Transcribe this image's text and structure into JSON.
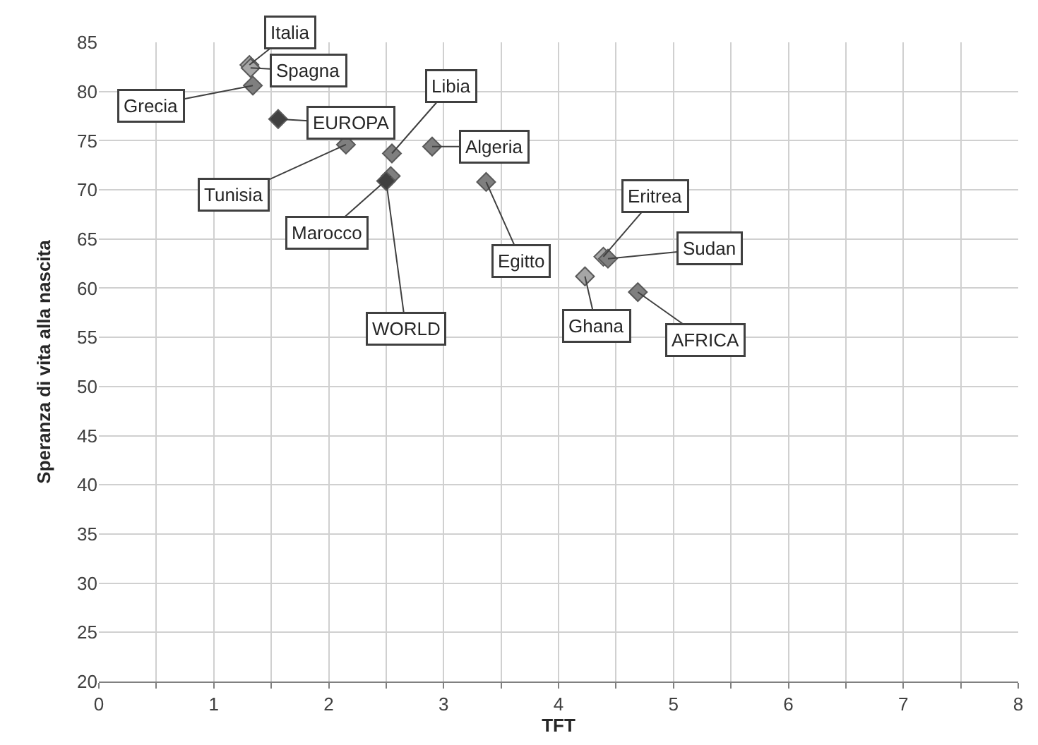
{
  "chart_data": {
    "type": "scatter",
    "xlabel": "TFT",
    "ylabel": "Speranza di vita alla nascita",
    "x": [
      1.31,
      1.32,
      1.34,
      1.56,
      2.15,
      2.55,
      2.54,
      2.5,
      2.9,
      3.37,
      4.39,
      4.43,
      4.23,
      4.69
    ],
    "series": [
      {
        "values": [
          82.7,
          82.4,
          80.6,
          77.2,
          74.6,
          73.7,
          71.4,
          70.9,
          74.4,
          70.8,
          63.2,
          63.0,
          61.2,
          59.6
        ],
        "colors": [
          "#a6a6a6",
          "#a6a6a6",
          "#7f7f7f",
          "#404040",
          "#7f7f7f",
          "#7f7f7f",
          "#7f7f7f",
          "#404040",
          "#7f7f7f",
          "#7f7f7f",
          "#a6a6a6",
          "#7f7f7f",
          "#a6a6a6",
          "#7f7f7f"
        ]
      }
    ],
    "marker": "diamond",
    "xlim": [
      0,
      8
    ],
    "ylim": [
      20,
      85
    ],
    "xticks": [
      0,
      {
        "value": 0.5,
        "label": null
      },
      1,
      {
        "value": 1.5,
        "label": null
      },
      2,
      {
        "value": 2.5,
        "label": null
      },
      3,
      {
        "value": 3.5,
        "label": null
      },
      4,
      {
        "value": 4.5,
        "label": null
      },
      5,
      {
        "value": 5.5,
        "label": null
      },
      6,
      {
        "value": 6.5,
        "label": null
      },
      7,
      {
        "value": 7.5,
        "label": null
      },
      8
    ],
    "yticks": [
      20,
      25,
      30,
      35,
      40,
      45,
      50,
      55,
      60,
      65,
      70,
      75,
      80,
      85
    ],
    "grid": true,
    "annotations": [
      {
        "text": "Italia",
        "x": 1.31,
        "y": 82.7
      },
      {
        "text": "Spagna",
        "x": 1.32,
        "y": 82.4
      },
      {
        "text": "Grecia",
        "x": 1.34,
        "y": 80.6
      },
      {
        "text": "EUROPA",
        "x": 1.56,
        "y": 77.2
      },
      {
        "text": "Tunisia",
        "x": 2.15,
        "y": 74.6
      },
      {
        "text": "Libia",
        "x": 2.55,
        "y": 73.7
      },
      {
        "text": "Marocco",
        "x": 2.54,
        "y": 71.4
      },
      {
        "text": "WORLD",
        "x": 2.5,
        "y": 70.9
      },
      {
        "text": "Algeria",
        "x": 2.9,
        "y": 74.4
      },
      {
        "text": "Egitto",
        "x": 3.37,
        "y": 70.8
      },
      {
        "text": "Eritrea",
        "x": 4.39,
        "y": 63.2
      },
      {
        "text": "Sudan",
        "x": 4.43,
        "y": 63.0
      },
      {
        "text": "Ghana",
        "x": 4.23,
        "y": 61.2
      },
      {
        "text": "AFRICA",
        "x": 4.69,
        "y": 59.6
      }
    ]
  }
}
